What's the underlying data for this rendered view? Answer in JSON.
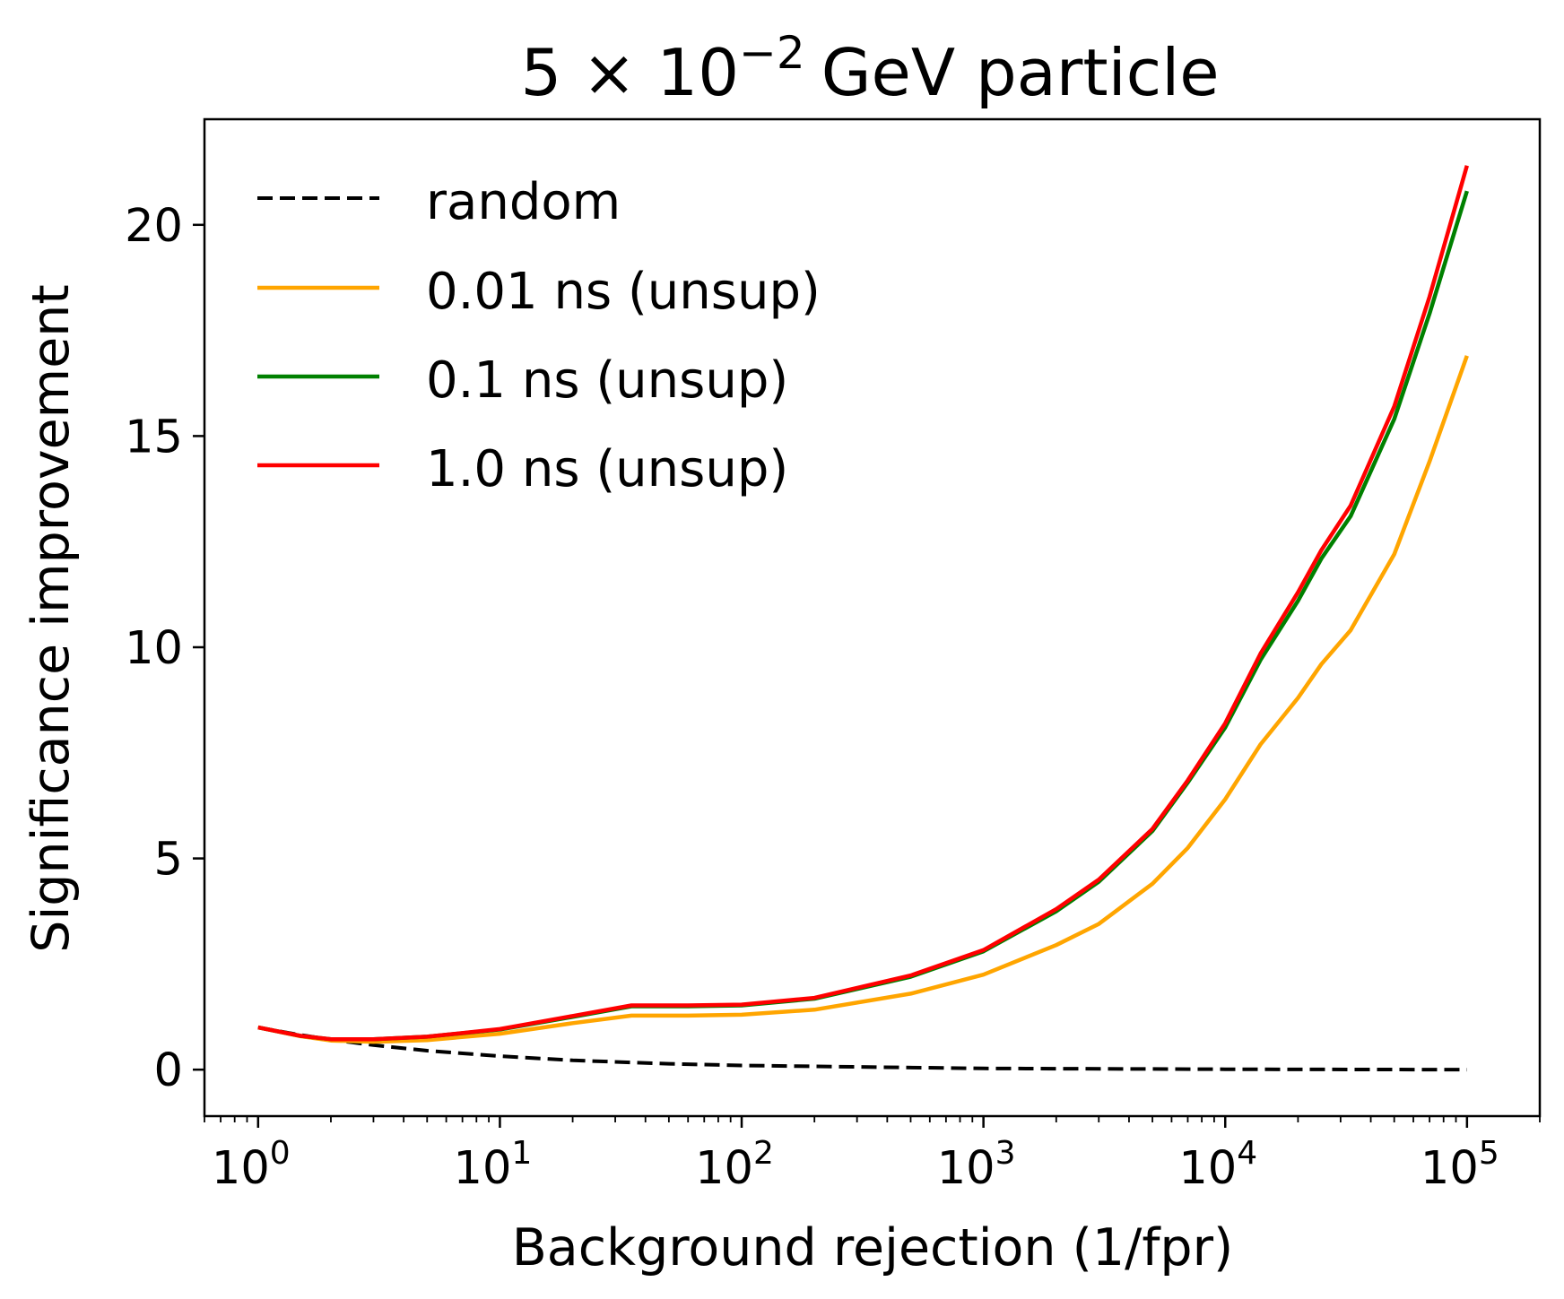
{
  "chart_data": {
    "type": "line",
    "title": {
      "base": "5",
      "times": "×",
      "mant": "10",
      "exp": "−2",
      "rest": "GeV particle"
    },
    "xlabel": "Background rejection (1/fpr)",
    "ylabel": "Significance improvement",
    "xscale": "log",
    "xlim": [
      0.6,
      200000
    ],
    "ylim": [
      -1.1,
      22.5
    ],
    "xticks": [
      {
        "base": "10",
        "exp": "0"
      },
      {
        "base": "10",
        "exp": "1"
      },
      {
        "base": "10",
        "exp": "2"
      },
      {
        "base": "10",
        "exp": "3"
      },
      {
        "base": "10",
        "exp": "4"
      },
      {
        "base": "10",
        "exp": "5"
      }
    ],
    "yticks": [
      "0",
      "5",
      "10",
      "15",
      "20"
    ],
    "legend_position": "top-left",
    "series": [
      {
        "name": "random",
        "color": "#000000",
        "dash": true,
        "x": [
          1,
          1.5,
          2,
          3,
          5,
          10,
          20,
          50,
          100,
          1000,
          10000,
          100000
        ],
        "y": [
          1.0,
          0.82,
          0.71,
          0.58,
          0.45,
          0.32,
          0.22,
          0.14,
          0.1,
          0.03,
          0.01,
          0.0
        ]
      },
      {
        "name": "0.01 ns (unsup)",
        "color": "#ffa500",
        "dash": false,
        "x": [
          1,
          1.5,
          2,
          3,
          5,
          10,
          20,
          35,
          60,
          100,
          200,
          500,
          1000,
          2000,
          3000,
          5000,
          7000,
          10000,
          14000,
          20000,
          25000,
          33000,
          50000,
          70000,
          100000
        ],
        "y": [
          1.0,
          0.79,
          0.69,
          0.66,
          0.7,
          0.85,
          1.1,
          1.28,
          1.28,
          1.3,
          1.42,
          1.8,
          2.25,
          2.95,
          3.45,
          4.4,
          5.25,
          6.4,
          7.7,
          8.8,
          9.6,
          10.4,
          12.2,
          14.4,
          16.9
        ]
      },
      {
        "name": "0.1 ns (unsup)",
        "color": "#008000",
        "dash": false,
        "x": [
          1,
          1.5,
          2,
          3,
          5,
          10,
          20,
          35,
          60,
          100,
          200,
          500,
          1000,
          2000,
          3000,
          5000,
          7000,
          10000,
          14000,
          20000,
          25000,
          33000,
          50000,
          70000,
          100000
        ],
        "y": [
          1.0,
          0.8,
          0.72,
          0.72,
          0.78,
          0.95,
          1.25,
          1.5,
          1.5,
          1.52,
          1.68,
          2.2,
          2.8,
          3.75,
          4.45,
          5.65,
          6.8,
          8.1,
          9.7,
          11.1,
          12.1,
          13.1,
          15.4,
          17.9,
          20.8
        ]
      },
      {
        "name": "1.0 ns (unsup)",
        "color": "#ff0000",
        "dash": false,
        "x": [
          1,
          1.5,
          2,
          3,
          5,
          10,
          20,
          35,
          60,
          100,
          200,
          500,
          1000,
          2000,
          3000,
          5000,
          7000,
          10000,
          14000,
          20000,
          25000,
          33000,
          50000,
          70000,
          100000
        ],
        "y": [
          1.0,
          0.8,
          0.72,
          0.72,
          0.78,
          0.96,
          1.27,
          1.52,
          1.52,
          1.54,
          1.7,
          2.23,
          2.83,
          3.8,
          4.5,
          5.7,
          6.85,
          8.2,
          9.85,
          11.3,
          12.3,
          13.35,
          15.7,
          18.3,
          21.4
        ]
      }
    ]
  }
}
